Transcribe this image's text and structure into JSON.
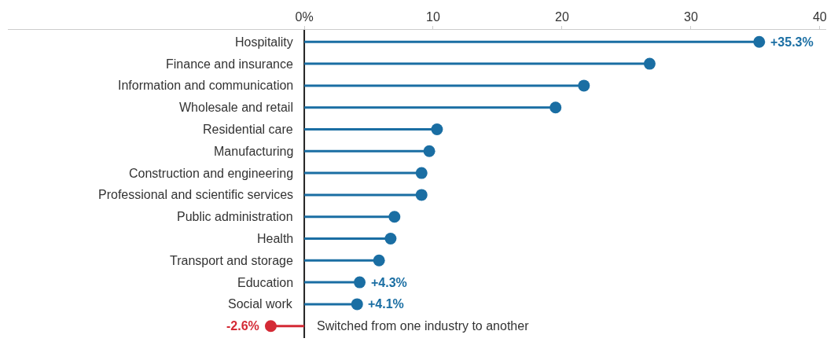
{
  "chart_data": {
    "type": "lollipop",
    "orientation": "horizontal",
    "categories": [
      "Hospitality",
      "Finance and insurance",
      "Information and communication",
      "Wholesale and retail",
      "Residential care",
      "Manufacturing",
      "Construction and engineering",
      "Professional and scientific services",
      "Public administration",
      "Health",
      "Transport and storage",
      "Education",
      "Social work",
      "Switched from one industry to another"
    ],
    "values": [
      35.3,
      26.8,
      21.7,
      19.5,
      10.3,
      9.7,
      9.1,
      9.1,
      7.0,
      6.7,
      5.8,
      4.3,
      4.1,
      -2.6
    ],
    "colors": [
      "#1a6ea3",
      "#1a6ea3",
      "#1a6ea3",
      "#1a6ea3",
      "#1a6ea3",
      "#1a6ea3",
      "#1a6ea3",
      "#1a6ea3",
      "#1a6ea3",
      "#1a6ea3",
      "#1a6ea3",
      "#1a6ea3",
      "#1a6ea3",
      "#d42a35"
    ],
    "value_labels": [
      "+35.3%",
      null,
      null,
      null,
      null,
      null,
      null,
      null,
      null,
      null,
      null,
      "+4.3%",
      "+4.1%",
      "-2.6%"
    ],
    "xlim": [
      -23,
      40.5
    ],
    "xticks": [
      {
        "value": 0,
        "label": "0%"
      },
      10,
      20,
      30,
      40
    ],
    "marker": "circle"
  }
}
